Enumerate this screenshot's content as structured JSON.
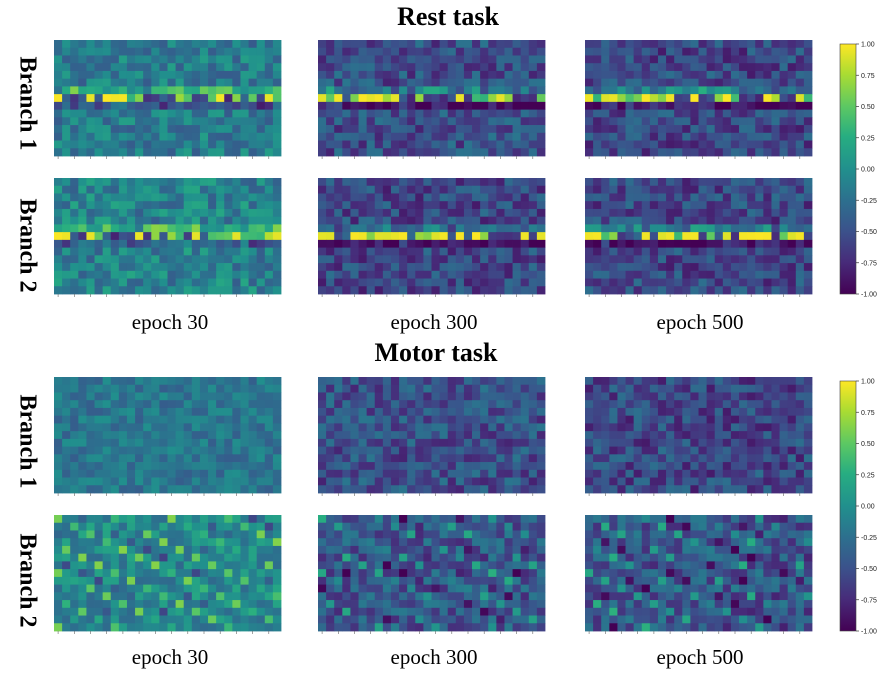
{
  "sections": [
    {
      "title": "Rest task",
      "branch_labels": [
        "Branch 1",
        "Branch 2"
      ],
      "epoch_labels": [
        "epoch 30",
        "epoch 300",
        "epoch 500"
      ]
    },
    {
      "title": "Motor task",
      "branch_labels": [
        "Branch 1",
        "Branch 2"
      ],
      "epoch_labels": [
        "epoch 30",
        "epoch 300",
        "epoch 500"
      ]
    }
  ],
  "chart_data": {
    "type": "heatmap",
    "colormap": "viridis",
    "grid_rows": 15,
    "grid_cols": 28,
    "colorbar": {
      "range": [
        -1.0,
        1.0
      ],
      "ticks": [
        "1.00",
        "0.75",
        "0.50",
        "0.25",
        "0.00",
        "-0.25",
        "-0.50",
        "-0.75",
        "-1.00"
      ]
    },
    "panels": [
      {
        "task": "Rest task",
        "branch": "Branch 1",
        "epoch": "epoch 30",
        "pattern": "band",
        "band_row": 7,
        "base": -0.15,
        "noise": 0.28
      },
      {
        "task": "Rest task",
        "branch": "Branch 1",
        "epoch": "epoch 300",
        "pattern": "band",
        "band_row": 7,
        "base": -0.5,
        "noise": 0.3
      },
      {
        "task": "Rest task",
        "branch": "Branch 1",
        "epoch": "epoch 500",
        "pattern": "band",
        "band_row": 7,
        "base": -0.55,
        "noise": 0.3
      },
      {
        "task": "Rest task",
        "branch": "Branch 2",
        "epoch": "epoch 30",
        "pattern": "band",
        "band_row": 7,
        "base": -0.1,
        "noise": 0.3
      },
      {
        "task": "Rest task",
        "branch": "Branch 2",
        "epoch": "epoch 300",
        "pattern": "band",
        "band_row": 7,
        "base": -0.55,
        "noise": 0.3
      },
      {
        "task": "Rest task",
        "branch": "Branch 2",
        "epoch": "epoch 500",
        "pattern": "band",
        "band_row": 7,
        "base": -0.55,
        "noise": 0.3
      },
      {
        "task": "Motor task",
        "branch": "Branch 1",
        "epoch": "epoch 30",
        "pattern": "noise",
        "base": -0.2,
        "noise": 0.2
      },
      {
        "task": "Motor task",
        "branch": "Branch 1",
        "epoch": "epoch 300",
        "pattern": "noise",
        "base": -0.5,
        "noise": 0.3
      },
      {
        "task": "Motor task",
        "branch": "Branch 1",
        "epoch": "epoch 500",
        "pattern": "noise",
        "base": -0.55,
        "noise": 0.3
      },
      {
        "task": "Motor task",
        "branch": "Branch 2",
        "epoch": "epoch 30",
        "pattern": "diagonal",
        "base": -0.05,
        "noise": 0.25
      },
      {
        "task": "Motor task",
        "branch": "Branch 2",
        "epoch": "epoch 300",
        "pattern": "diagonal",
        "base": -0.45,
        "noise": 0.3
      },
      {
        "task": "Motor task",
        "branch": "Branch 2",
        "epoch": "epoch 500",
        "pattern": "diagonal",
        "base": -0.45,
        "noise": 0.3
      }
    ]
  }
}
